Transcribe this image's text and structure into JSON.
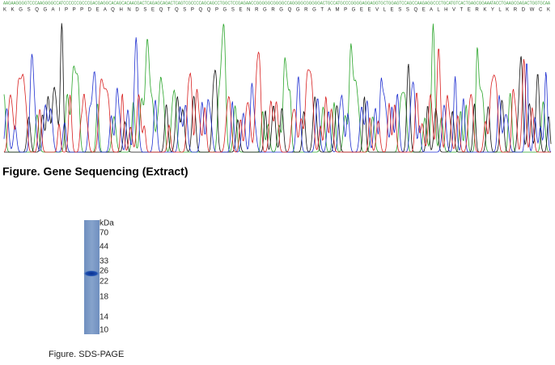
{
  "sequence": {
    "dna": "AAGAAGGGGTCCCAAGGGGCCATCCCCCCGCCCGACGAGGCACAGCACAACGACTCAGAGCAGACTCAGTCGCCCCAGCAGCCTGGCTCCGAGAACCGGGGGCGGGGCCAGGGGCGGGGGACTGCCATGCCCGGGGAGGAGGTGCTGGAGTCCAGCCAAGAGGCCCTGCATGTCACTGAGCGGAAATACCTGAAGCGAGACTGGTGCAA",
    "protein": "K K G S Q G A I P P P D E A Q H N D S E Q T Q S P Q Q P G S E N R G R G Q G R G T A M P G E E V L E S S Q E A L H V T E R K Y L K R D W C K",
    "caption": "Figure. Gene Sequencing (Extract)"
  },
  "gel": {
    "unit": "kDa",
    "markers": [
      "70",
      "44",
      "33",
      "26",
      "22",
      "18",
      "14",
      "10"
    ],
    "caption": "Figure. SDS-PAGE"
  }
}
